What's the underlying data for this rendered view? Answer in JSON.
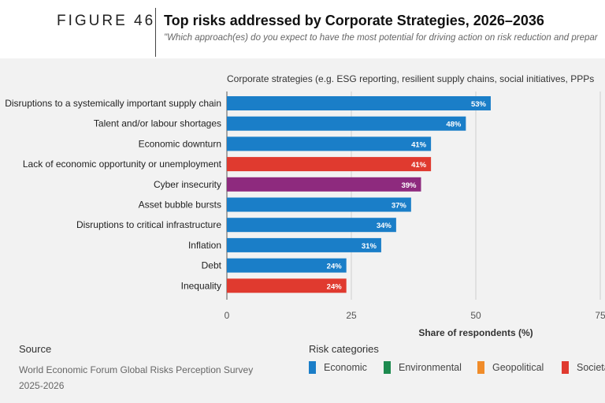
{
  "figure_label": "FIGURE 46",
  "title": "Top risks addressed by Corporate Strategies, 2026–2036",
  "subtitle": "\"Which approach(es) do you expect to have the most potential for driving action on risk reduction and prepar",
  "source": {
    "heading": "Source",
    "text": "World Economic Forum Global Risks Perception Survey 2025-2026"
  },
  "legend": {
    "title": "Risk categories",
    "items": [
      {
        "label": "Economic",
        "color": "#1a7ec8"
      },
      {
        "label": "Environmental",
        "color": "#1d8a4f"
      },
      {
        "label": "Geopolitical",
        "color": "#f08c2a"
      },
      {
        "label": "Societa",
        "color": "#e03a2f"
      }
    ]
  },
  "chart_data": {
    "type": "bar",
    "orientation": "horizontal",
    "title": "Corporate strategies (e.g. ESG reporting, resilient supply chains, social initiatives, PPPs",
    "xlabel": "Share of respondents (%)",
    "xlim": [
      0,
      75
    ],
    "xticks": [
      "0",
      "25",
      "50",
      "75"
    ],
    "grid": true,
    "categories": [
      "Disruptions to a systemically important supply chain",
      "Talent and/or labour shortages",
      "Economic downturn",
      "Lack of economic opportunity or unemployment",
      "Cyber insecurity",
      "Asset bubble bursts",
      "Disruptions to critical infrastructure",
      "Inflation",
      "Debt",
      "Inequality"
    ],
    "values": [
      53,
      48,
      41,
      41,
      39,
      37,
      34,
      31,
      24,
      24
    ],
    "labels": [
      "53%",
      "48%",
      "41%",
      "41%",
      "39%",
      "37%",
      "34%",
      "31%",
      "24%",
      "24%"
    ],
    "colors": [
      "#1a7ec8",
      "#1a7ec8",
      "#1a7ec8",
      "#e03a2f",
      "#8e2a7e",
      "#1a7ec8",
      "#1a7ec8",
      "#1a7ec8",
      "#1a7ec8",
      "#e03a2f"
    ]
  }
}
